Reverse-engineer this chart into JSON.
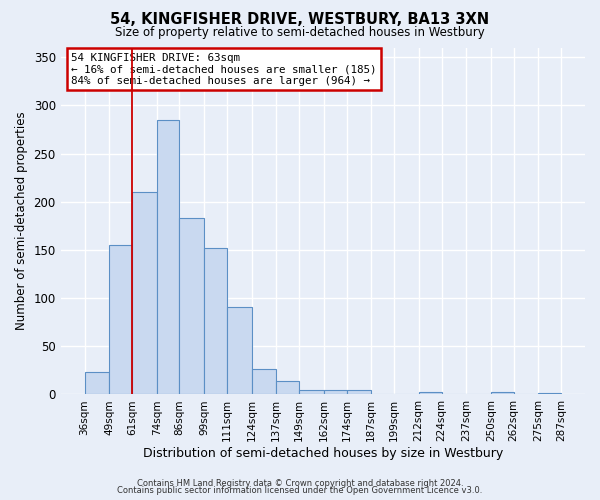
{
  "title": "54, KINGFISHER DRIVE, WESTBURY, BA13 3XN",
  "subtitle": "Size of property relative to semi-detached houses in Westbury",
  "xlabel": "Distribution of semi-detached houses by size in Westbury",
  "ylabel": "Number of semi-detached properties",
  "bar_color": "#c9d9f0",
  "bar_edge_color": "#5b8fc5",
  "background_color": "#e8eef8",
  "grid_color": "#ffffff",
  "vline_color": "#cc0000",
  "bin_edges": [
    36,
    49,
    61,
    74,
    86,
    99,
    111,
    124,
    137,
    149,
    162,
    174,
    187,
    199,
    212,
    224,
    237,
    250,
    262,
    275,
    287
  ],
  "bin_labels": [
    "36sqm",
    "49sqm",
    "61sqm",
    "74sqm",
    "86sqm",
    "99sqm",
    "111sqm",
    "124sqm",
    "137sqm",
    "149sqm",
    "162sqm",
    "174sqm",
    "187sqm",
    "199sqm",
    "212sqm",
    "224sqm",
    "237sqm",
    "250sqm",
    "262sqm",
    "275sqm",
    "287sqm"
  ],
  "counts": [
    23,
    155,
    210,
    285,
    183,
    152,
    91,
    26,
    14,
    5,
    5,
    5,
    0,
    0,
    3,
    0,
    0,
    3,
    0,
    2
  ],
  "vline_x": 61,
  "annotation_title": "54 KINGFISHER DRIVE: 63sqm",
  "annotation_line1": "← 16% of semi-detached houses are smaller (185)",
  "annotation_line2": "84% of semi-detached houses are larger (964) →",
  "ylim": [
    0,
    360
  ],
  "yticks": [
    0,
    50,
    100,
    150,
    200,
    250,
    300,
    350
  ],
  "footer1": "Contains HM Land Registry data © Crown copyright and database right 2024.",
  "footer2": "Contains public sector information licensed under the Open Government Licence v3.0."
}
